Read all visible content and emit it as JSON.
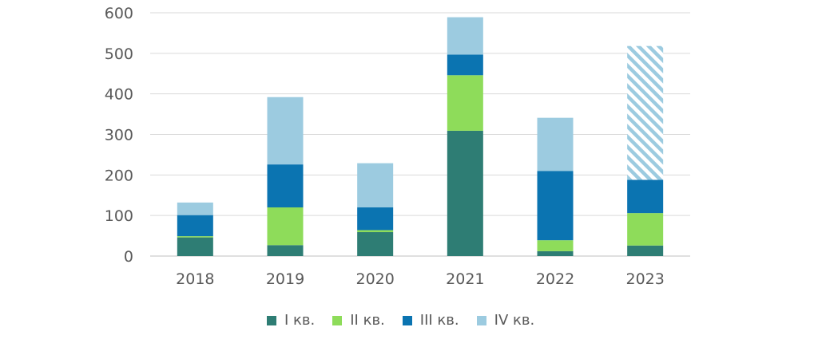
{
  "chart_data": {
    "type": "bar",
    "stacked": true,
    "categories": [
      "2018",
      "2019",
      "2020",
      "2021",
      "2022",
      "2023"
    ],
    "series": [
      {
        "name": "I кв.",
        "color": "#2e7d74",
        "values": [
          46,
          27,
          59,
          309,
          12,
          26
        ]
      },
      {
        "name": "II кв.",
        "color": "#8edc5a",
        "values": [
          3,
          93,
          5,
          137,
          27,
          80
        ]
      },
      {
        "name": "III кв.",
        "color": "#0b74b1",
        "values": [
          52,
          106,
          56,
          51,
          171,
          82
        ]
      },
      {
        "name": "IV кв.",
        "color": "#9ccbe0",
        "values": [
          31,
          166,
          109,
          92,
          131,
          330
        ],
        "hatched_categories": [
          "2023"
        ]
      }
    ],
    "ylim": [
      0,
      600
    ],
    "yticks": [
      0,
      100,
      200,
      300,
      400,
      500,
      600
    ],
    "grid": true,
    "legend": "bottom",
    "title": "",
    "xlabel": "",
    "ylabel": ""
  }
}
